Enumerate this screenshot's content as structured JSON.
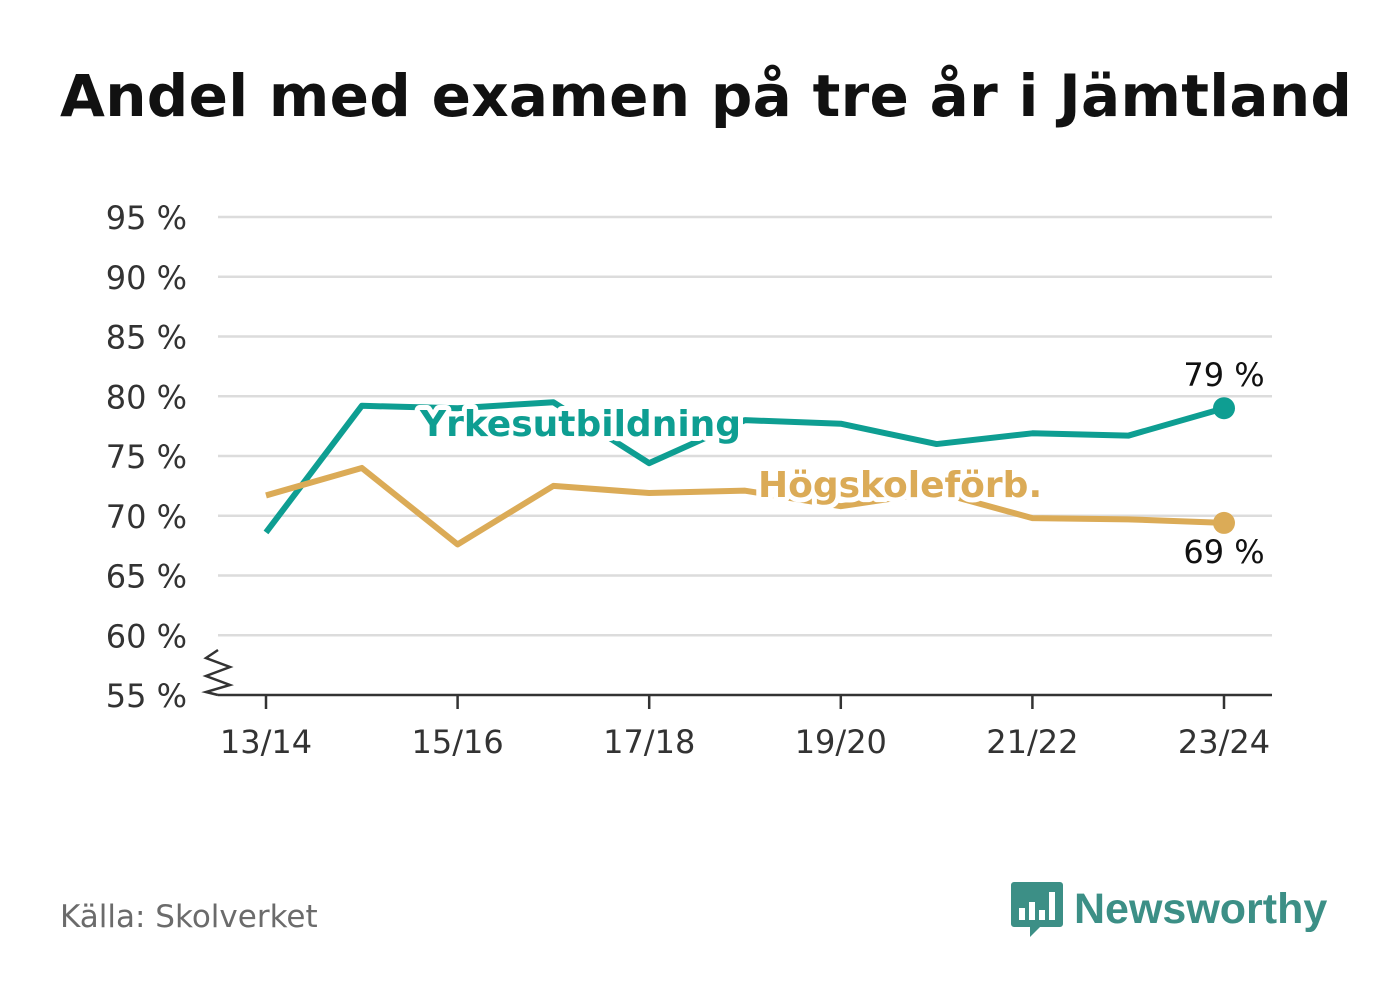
{
  "title": "Andel med examen på tre år i Jämtland",
  "source": "Källa: Skolverket",
  "brand": {
    "name": "Newsworthy",
    "icon": "bar-chart-speech-bubble-icon",
    "color": "#3c8f86"
  },
  "colors": {
    "series1": "#0e9e92",
    "series2": "#dbab57",
    "grid": "#dcdcdc",
    "axis": "#333333"
  },
  "chart_data": {
    "type": "line",
    "x": [
      "13/14",
      "14/15",
      "15/16",
      "16/17",
      "17/18",
      "18/19",
      "19/20",
      "20/21",
      "21/22",
      "22/23",
      "23/24"
    ],
    "xticks": [
      "13/14",
      "15/16",
      "17/18",
      "19/20",
      "21/22",
      "23/24"
    ],
    "yticks": [
      "55 %",
      "60 %",
      "65 %",
      "70 %",
      "75 %",
      "80 %",
      "85 %",
      "90 %",
      "95 %"
    ],
    "ylim": [
      55,
      95
    ],
    "y_axis_break": true,
    "grid": true,
    "series": [
      {
        "name": "Yrkesutbildning",
        "values": [
          68.6,
          79.2,
          79.0,
          79.5,
          74.4,
          78.0,
          77.7,
          76.0,
          76.9,
          76.7,
          79.0
        ],
        "end_label": "79 %"
      },
      {
        "name": "Högskoleförb.",
        "values": [
          71.7,
          74.0,
          67.6,
          72.5,
          71.9,
          72.1,
          70.8,
          72.0,
          69.8,
          69.7,
          69.4
        ],
        "end_label": "69 %"
      }
    ]
  }
}
